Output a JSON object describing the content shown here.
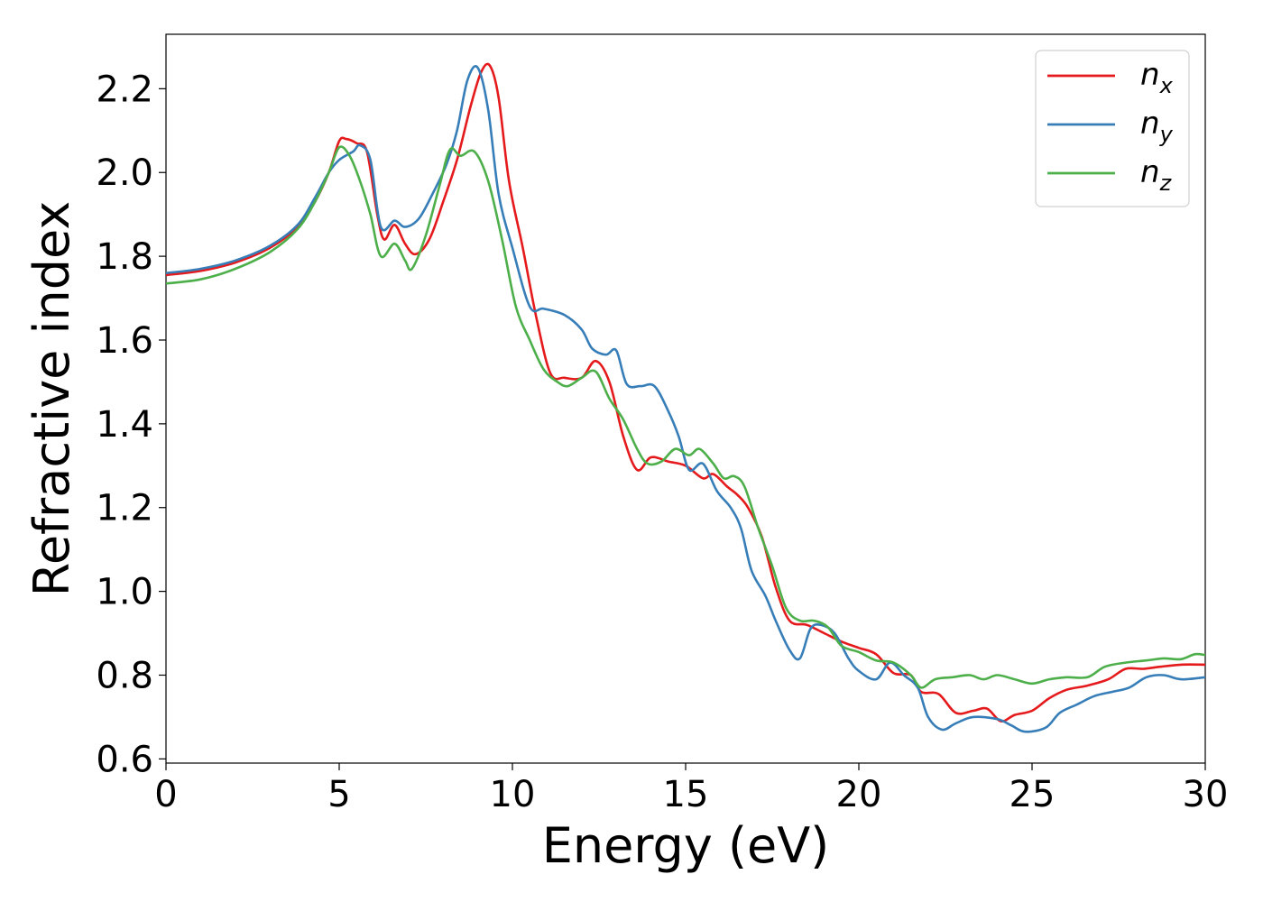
{
  "chart_data": {
    "type": "line",
    "title": "",
    "xlabel": "Energy (eV)",
    "ylabel": "Refractive index",
    "xlim": [
      0,
      30
    ],
    "ylim": [
      0.59,
      2.33
    ],
    "xticks": [
      0,
      5,
      10,
      15,
      20,
      25,
      30
    ],
    "xtick_labels": [
      "0",
      "5",
      "10",
      "15",
      "20",
      "25",
      "30"
    ],
    "yticks": [
      0.6,
      0.8,
      1.0,
      1.2,
      1.4,
      1.6,
      1.8,
      2.0,
      2.2
    ],
    "ytick_labels": [
      "0.6",
      "0.8",
      "1.0",
      "1.2",
      "1.4",
      "1.6",
      "1.8",
      "2.0",
      "2.2"
    ],
    "grid": false,
    "legend_position": "top-right",
    "series": [
      {
        "name": "n",
        "subscript": "x",
        "color": "#e41a1c",
        "points": [
          [
            0,
            1.755
          ],
          [
            1,
            1.765
          ],
          [
            2,
            1.785
          ],
          [
            3,
            1.82
          ],
          [
            3.8,
            1.87
          ],
          [
            4.3,
            1.93
          ],
          [
            4.7,
            2.0
          ],
          [
            5.0,
            2.075
          ],
          [
            5.2,
            2.08
          ],
          [
            5.5,
            2.07
          ],
          [
            5.8,
            2.05
          ],
          [
            6.1,
            1.9
          ],
          [
            6.3,
            1.84
          ],
          [
            6.6,
            1.875
          ],
          [
            6.9,
            1.83
          ],
          [
            7.2,
            1.805
          ],
          [
            7.6,
            1.84
          ],
          [
            8.0,
            1.93
          ],
          [
            8.4,
            2.03
          ],
          [
            8.8,
            2.16
          ],
          [
            9.1,
            2.24
          ],
          [
            9.35,
            2.255
          ],
          [
            9.6,
            2.18
          ],
          [
            9.9,
            1.98
          ],
          [
            10.3,
            1.82
          ],
          [
            10.7,
            1.65
          ],
          [
            11.1,
            1.52
          ],
          [
            11.5,
            1.51
          ],
          [
            12.0,
            1.51
          ],
          [
            12.4,
            1.55
          ],
          [
            12.8,
            1.5
          ],
          [
            13.2,
            1.37
          ],
          [
            13.6,
            1.29
          ],
          [
            14.0,
            1.32
          ],
          [
            14.5,
            1.31
          ],
          [
            15.0,
            1.3
          ],
          [
            15.5,
            1.27
          ],
          [
            15.8,
            1.28
          ],
          [
            16.2,
            1.25
          ],
          [
            16.5,
            1.23
          ],
          [
            16.8,
            1.2
          ],
          [
            17.2,
            1.13
          ],
          [
            17.6,
            1.01
          ],
          [
            18.0,
            0.93
          ],
          [
            18.5,
            0.92
          ],
          [
            19.0,
            0.9
          ],
          [
            19.5,
            0.88
          ],
          [
            20.0,
            0.865
          ],
          [
            20.5,
            0.85
          ],
          [
            21.0,
            0.805
          ],
          [
            21.5,
            0.8
          ],
          [
            21.8,
            0.76
          ],
          [
            22.3,
            0.755
          ],
          [
            22.8,
            0.71
          ],
          [
            23.3,
            0.715
          ],
          [
            23.7,
            0.72
          ],
          [
            24.1,
            0.69
          ],
          [
            24.5,
            0.705
          ],
          [
            25.0,
            0.715
          ],
          [
            25.5,
            0.745
          ],
          [
            26.0,
            0.765
          ],
          [
            26.6,
            0.775
          ],
          [
            27.2,
            0.79
          ],
          [
            27.7,
            0.815
          ],
          [
            28.2,
            0.815
          ],
          [
            28.7,
            0.82
          ],
          [
            29.3,
            0.825
          ],
          [
            30,
            0.825
          ]
        ]
      },
      {
        "name": "n",
        "subscript": "y",
        "color": "#377eb8",
        "points": [
          [
            0,
            1.76
          ],
          [
            1,
            1.77
          ],
          [
            2,
            1.79
          ],
          [
            3,
            1.825
          ],
          [
            3.8,
            1.875
          ],
          [
            4.3,
            1.94
          ],
          [
            4.7,
            2.0
          ],
          [
            5.0,
            2.03
          ],
          [
            5.4,
            2.05
          ],
          [
            5.6,
            2.065
          ],
          [
            5.9,
            2.03
          ],
          [
            6.2,
            1.87
          ],
          [
            6.6,
            1.885
          ],
          [
            6.9,
            1.87
          ],
          [
            7.3,
            1.89
          ],
          [
            7.7,
            1.95
          ],
          [
            8.1,
            2.02
          ],
          [
            8.4,
            2.1
          ],
          [
            8.7,
            2.22
          ],
          [
            9.0,
            2.25
          ],
          [
            9.3,
            2.15
          ],
          [
            9.6,
            1.95
          ],
          [
            10.0,
            1.82
          ],
          [
            10.5,
            1.68
          ],
          [
            10.9,
            1.675
          ],
          [
            11.5,
            1.66
          ],
          [
            12.0,
            1.625
          ],
          [
            12.3,
            1.58
          ],
          [
            12.7,
            1.565
          ],
          [
            13.0,
            1.575
          ],
          [
            13.3,
            1.495
          ],
          [
            13.7,
            1.49
          ],
          [
            14.1,
            1.49
          ],
          [
            14.5,
            1.43
          ],
          [
            14.8,
            1.37
          ],
          [
            15.1,
            1.29
          ],
          [
            15.5,
            1.305
          ],
          [
            15.9,
            1.24
          ],
          [
            16.3,
            1.2
          ],
          [
            16.6,
            1.15
          ],
          [
            16.9,
            1.05
          ],
          [
            17.3,
            0.99
          ],
          [
            17.6,
            0.93
          ],
          [
            18.0,
            0.86
          ],
          [
            18.3,
            0.84
          ],
          [
            18.6,
            0.91
          ],
          [
            18.9,
            0.92
          ],
          [
            19.3,
            0.9
          ],
          [
            19.7,
            0.84
          ],
          [
            20.0,
            0.81
          ],
          [
            20.5,
            0.79
          ],
          [
            20.9,
            0.83
          ],
          [
            21.3,
            0.8
          ],
          [
            21.7,
            0.77
          ],
          [
            22.0,
            0.7
          ],
          [
            22.4,
            0.67
          ],
          [
            22.8,
            0.685
          ],
          [
            23.3,
            0.7
          ],
          [
            24.0,
            0.695
          ],
          [
            24.4,
            0.68
          ],
          [
            24.8,
            0.665
          ],
          [
            25.4,
            0.675
          ],
          [
            25.8,
            0.71
          ],
          [
            26.3,
            0.73
          ],
          [
            26.8,
            0.75
          ],
          [
            27.3,
            0.76
          ],
          [
            27.8,
            0.77
          ],
          [
            28.3,
            0.795
          ],
          [
            28.8,
            0.8
          ],
          [
            29.3,
            0.79
          ],
          [
            30,
            0.795
          ]
        ]
      },
      {
        "name": "n",
        "subscript": "z",
        "color": "#4daf4a",
        "points": [
          [
            0,
            1.735
          ],
          [
            1,
            1.745
          ],
          [
            2,
            1.77
          ],
          [
            3,
            1.81
          ],
          [
            3.8,
            1.865
          ],
          [
            4.3,
            1.93
          ],
          [
            4.7,
            2.0
          ],
          [
            5.0,
            2.06
          ],
          [
            5.3,
            2.04
          ],
          [
            5.6,
            1.98
          ],
          [
            5.9,
            1.9
          ],
          [
            6.2,
            1.8
          ],
          [
            6.6,
            1.83
          ],
          [
            6.9,
            1.79
          ],
          [
            7.1,
            1.77
          ],
          [
            7.5,
            1.85
          ],
          [
            7.9,
            1.97
          ],
          [
            8.2,
            2.055
          ],
          [
            8.5,
            2.04
          ],
          [
            8.9,
            2.05
          ],
          [
            9.3,
            1.98
          ],
          [
            9.7,
            1.84
          ],
          [
            10.1,
            1.68
          ],
          [
            10.5,
            1.6
          ],
          [
            10.9,
            1.53
          ],
          [
            11.3,
            1.5
          ],
          [
            11.6,
            1.49
          ],
          [
            12.0,
            1.51
          ],
          [
            12.4,
            1.525
          ],
          [
            12.8,
            1.46
          ],
          [
            13.2,
            1.41
          ],
          [
            13.6,
            1.34
          ],
          [
            13.9,
            1.305
          ],
          [
            14.3,
            1.31
          ],
          [
            14.7,
            1.34
          ],
          [
            15.1,
            1.325
          ],
          [
            15.4,
            1.34
          ],
          [
            15.8,
            1.305
          ],
          [
            16.1,
            1.27
          ],
          [
            16.4,
            1.275
          ],
          [
            16.7,
            1.25
          ],
          [
            17.1,
            1.15
          ],
          [
            17.5,
            1.06
          ],
          [
            17.9,
            0.96
          ],
          [
            18.3,
            0.93
          ],
          [
            18.7,
            0.93
          ],
          [
            19.1,
            0.915
          ],
          [
            19.5,
            0.87
          ],
          [
            20.0,
            0.855
          ],
          [
            20.5,
            0.835
          ],
          [
            21.0,
            0.83
          ],
          [
            21.5,
            0.8
          ],
          [
            21.8,
            0.77
          ],
          [
            22.2,
            0.79
          ],
          [
            22.7,
            0.795
          ],
          [
            23.2,
            0.8
          ],
          [
            23.6,
            0.79
          ],
          [
            24.0,
            0.8
          ],
          [
            24.5,
            0.79
          ],
          [
            25.0,
            0.78
          ],
          [
            25.5,
            0.79
          ],
          [
            26.0,
            0.795
          ],
          [
            26.6,
            0.795
          ],
          [
            27.1,
            0.82
          ],
          [
            27.7,
            0.83
          ],
          [
            28.3,
            0.835
          ],
          [
            28.8,
            0.84
          ],
          [
            29.3,
            0.838
          ],
          [
            29.7,
            0.85
          ],
          [
            30,
            0.848
          ]
        ]
      }
    ]
  }
}
